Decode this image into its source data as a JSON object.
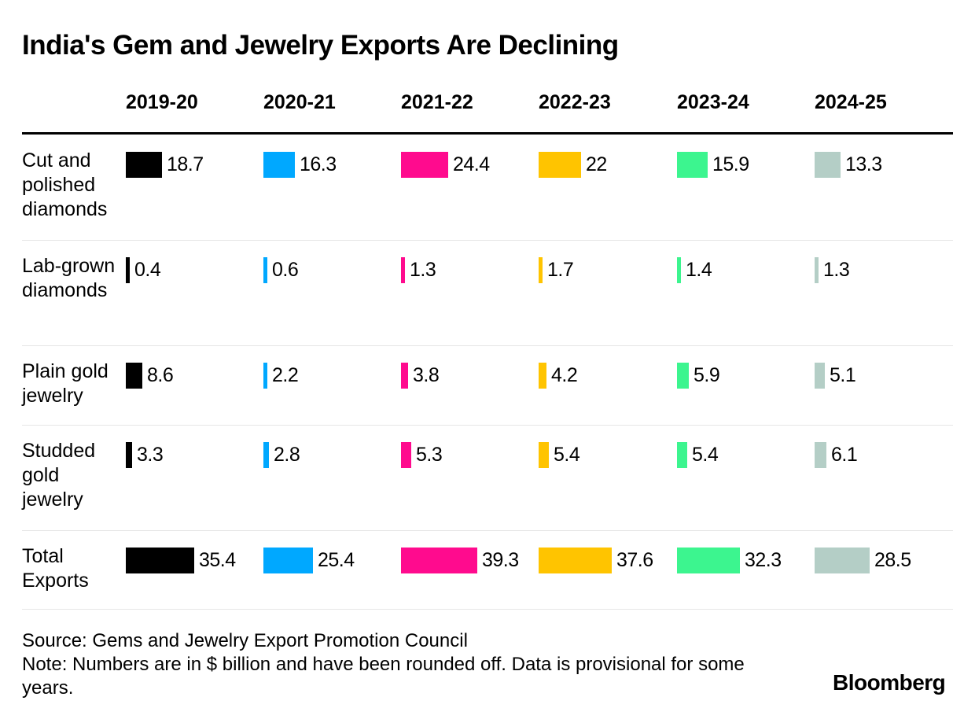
{
  "title": "India's Gem and Jewelry Exports Are Declining",
  "source": "Source: Gems and Jewelry Export Promotion Council",
  "note": "Note: Numbers are in $ billion and have been rounded off. Data is provisional for some years.",
  "brand": "Bloomberg",
  "chart_data": {
    "type": "table",
    "title": "India's Gem and Jewelry Exports Are Declining",
    "units": "$ billion",
    "columns": [
      "2019-20",
      "2020-21",
      "2021-22",
      "2022-23",
      "2023-24",
      "2024-25"
    ],
    "column_colors": [
      "#000000",
      "#00a8ff",
      "#ff0b8e",
      "#ffc400",
      "#3cf58f",
      "#b4cec6"
    ],
    "rows": [
      {
        "label": "Cut and polished diamonds",
        "values": [
          18.7,
          16.3,
          24.4,
          22,
          15.9,
          13.3
        ],
        "display": [
          "18.7",
          "16.3",
          "24.4",
          "22",
          "15.9",
          "13.3"
        ]
      },
      {
        "label": "Lab-grown diamonds",
        "values": [
          0.4,
          0.6,
          1.3,
          1.7,
          1.4,
          1.3
        ],
        "display": [
          "0.4",
          "0.6",
          "1.3",
          "1.7",
          "1.4",
          "1.3"
        ]
      },
      {
        "label": "Plain gold jewelry",
        "values": [
          8.6,
          2.2,
          3.8,
          4.2,
          5.9,
          5.1
        ],
        "display": [
          "8.6",
          "2.2",
          "3.8",
          "4.2",
          "5.9",
          "5.1"
        ]
      },
      {
        "label": "Studded gold jewelry",
        "values": [
          3.3,
          2.8,
          5.3,
          5.4,
          5.4,
          6.1
        ],
        "display": [
          "3.3",
          "2.8",
          "5.3",
          "5.4",
          "5.4",
          "6.1"
        ]
      },
      {
        "label": "Total Exports",
        "values": [
          35.4,
          25.4,
          39.3,
          37.6,
          32.3,
          28.5
        ],
        "display": [
          "35.4",
          "25.4",
          "39.3",
          "37.6",
          "32.3",
          "28.5"
        ]
      }
    ]
  }
}
